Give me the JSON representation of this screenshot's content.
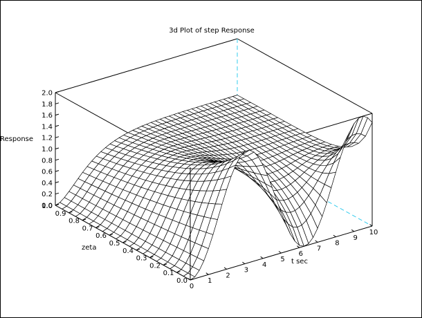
{
  "chart_data": {
    "type": "surface3d",
    "title": "3d Plot of step Response",
    "zlabel": "Response",
    "xlabel": "t sec",
    "ylabel": "zeta",
    "x_range": [
      0,
      10
    ],
    "y_range": [
      0.0,
      1.0
    ],
    "z_range": [
      0.0,
      2.0
    ],
    "x_ticks": [
      "0",
      "1",
      "2",
      "3",
      "4",
      "5",
      "6",
      "7",
      "8",
      "9",
      "10"
    ],
    "y_ticks": [
      "0.0",
      "0.1",
      "0.2",
      "0.3",
      "0.4",
      "0.5",
      "0.6",
      "0.7",
      "0.8",
      "0.9",
      "1.0"
    ],
    "z_ticks": [
      "0.0",
      "0.2",
      "0.4",
      "0.6",
      "0.8",
      "1.0",
      "1.2",
      "1.4",
      "1.6",
      "1.8",
      "2.0"
    ],
    "function": "second-order step response, wn = 1",
    "colors": {
      "line": "#000000",
      "surface_fill": "#ffffff",
      "dashed_axis": "#33ccee",
      "background": "#ffffff"
    }
  }
}
